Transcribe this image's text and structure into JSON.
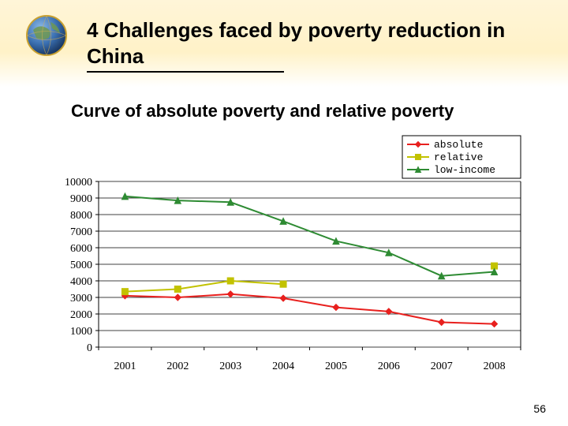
{
  "slide": {
    "title": "4 Challenges faced by poverty reduction in China",
    "subtitle": "Curve of absolute poverty and relative poverty",
    "page_number": "56"
  },
  "header": {
    "gradient_top": "#fff5d8",
    "gradient_mid": "#fff2c8",
    "gradient_bottom": "#ffffff"
  },
  "chart": {
    "type": "line",
    "categories": [
      "2001",
      "2002",
      "2003",
      "2004",
      "2005",
      "2006",
      "2007",
      "2008"
    ],
    "series": [
      {
        "name": "absolute",
        "color": "#e8201e",
        "marker": "diamond",
        "values": [
          3100,
          3000,
          3200,
          2950,
          2400,
          2150,
          1500,
          1400
        ]
      },
      {
        "name": "relative",
        "color": "#c2c200",
        "marker": "square",
        "values": [
          3350,
          3500,
          4000,
          3800,
          null,
          null,
          null,
          4900
        ]
      },
      {
        "name": "low-income",
        "color": "#2e8b33",
        "marker": "triangle",
        "values": [
          9100,
          8850,
          8750,
          7600,
          6400,
          5700,
          4300,
          4550
        ]
      }
    ],
    "ylim": [
      0,
      10000
    ],
    "ytick_step": 1000,
    "ytick_labels": [
      "0",
      "1000",
      "2000",
      "3000",
      "4000",
      "5000",
      "6000",
      "7000",
      "8000",
      "9000",
      "10000"
    ],
    "plot_bg": "#ffffff",
    "grid_color": "#000000",
    "axis_color": "#000000",
    "axis_fontsize": 13,
    "axis_font": "Times New Roman",
    "tick_fontsize": 14,
    "line_width": 2,
    "marker_size": 8,
    "legend": {
      "position": "top-right",
      "font": "monospace",
      "fontsize": 13,
      "border_color": "#000000",
      "bg": "#ffffff"
    }
  }
}
